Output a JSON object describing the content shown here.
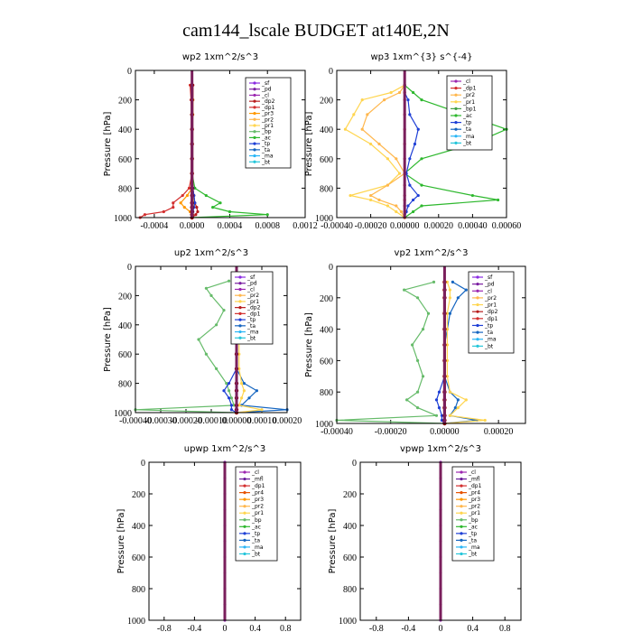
{
  "title": "cam144_lscale  BUDGET at140E,2N",
  "colors": {
    "sf": "#8a2be2",
    "pd": "#7b1fa2",
    "cl": "#9c27b0",
    "mfl": "#6a1b9a",
    "dp1": "#d32f2f",
    "dp2": "#b71c1c",
    "pr1": "#ffd54f",
    "pr2": "#ffb74d",
    "pr3": "#ff9800",
    "pr4": "#e65100",
    "bp": "#66bb6a",
    "bp1": "#43a047",
    "ac": "#2eb82e",
    "tp": "#1e3fd6",
    "ta": "#1565c0",
    "ma": "#29b6f6",
    "bt": "#26c6da",
    "sum": "#8b0000"
  },
  "chart_data": [
    {
      "id": "wp2",
      "type": "line",
      "title": "wp2   1xm^2/s^3",
      "ylabel": "Pressure [hPa]",
      "xlim": [
        -0.0006,
        0.0012
      ],
      "ylim": [
        1000,
        0
      ],
      "xticks": [
        -0.0004,
        0.0,
        0.0004,
        0.0008,
        0.0012
      ],
      "xtick_labels": [
        "-0.0004",
        "0.0000",
        "0.0004",
        "0.0008",
        "0.0012"
      ],
      "yticks": [
        0,
        200,
        400,
        600,
        800,
        1000
      ],
      "legend": [
        "_sf",
        "_pd",
        "_cl",
        "_dp2",
        "_dp1",
        "_pr3",
        "_pr2",
        "_pr1",
        "_bp",
        "_ac",
        "_tp",
        "_ta",
        "_ma",
        "_bt"
      ],
      "legend_keys": [
        "sf",
        "pd",
        "cl",
        "dp2",
        "dp1",
        "pr3",
        "pr2",
        "pr1",
        "bp",
        "ac",
        "tp",
        "ta",
        "ma",
        "bt"
      ],
      "legend_pos": "top-right",
      "pressure": [
        100,
        200,
        300,
        400,
        500,
        600,
        700,
        800,
        850,
        900,
        930,
        960,
        980,
        1000
      ],
      "series": [
        {
          "key": "ac",
          "values": [
            0,
            0,
            0,
            0,
            0,
            0,
            0,
            3e-05,
            0.00015,
            0.0003,
            0.00022,
            0.0004,
            0.0008,
            0
          ]
        },
        {
          "key": "dp1",
          "values": [
            -2e-05,
            -1e-05,
            0,
            0,
            0,
            0,
            0,
            -3e-05,
            -0.0001,
            -0.0002,
            -0.0002,
            -0.0003,
            -0.0005,
            -0.00055
          ]
        },
        {
          "key": "pr3",
          "values": [
            0,
            0,
            0,
            0,
            0,
            0,
            0,
            0,
            -5e-05,
            -0.00012,
            -8e-05,
            -2e-05,
            0,
            0
          ]
        },
        {
          "key": "dp2",
          "values": [
            1e-05,
            1e-05,
            0,
            0,
            0,
            0,
            0,
            1e-05,
            2e-05,
            3e-05,
            5e-05,
            6e-05,
            4e-05,
            0
          ]
        },
        {
          "key": "pr1",
          "values": [
            0,
            1e-05,
            1e-05,
            0,
            0,
            0,
            0,
            0,
            1e-05,
            2e-05,
            1e-05,
            0,
            0,
            0
          ]
        },
        {
          "key": "tp",
          "values": [
            0,
            0,
            0,
            0,
            0,
            0,
            0,
            1e-05,
            2e-05,
            3e-05,
            2e-05,
            1e-05,
            0,
            0
          ]
        },
        {
          "key": "sum",
          "values": [
            0,
            0,
            0,
            0,
            0,
            0,
            0,
            0,
            0,
            0,
            0,
            0,
            0,
            0
          ]
        }
      ]
    },
    {
      "id": "wp3",
      "type": "line",
      "title": "wp3   1xm^{3} s^{-4}",
      "ylabel": "Pressure [hPa]",
      "xlim": [
        -0.0004,
        0.0006
      ],
      "ylim": [
        1000,
        0
      ],
      "xticks": [
        -0.0004,
        -0.0002,
        0.0,
        0.0002,
        0.0004,
        0.0006
      ],
      "xtick_labels": [
        "-0.00040",
        "-0.00020",
        "0.00000",
        "0.00020",
        "0.00040",
        "0.00060"
      ],
      "yticks": [
        0,
        200,
        400,
        600,
        800,
        1000
      ],
      "legend": [
        "_cl",
        "_dp1",
        "_pr2",
        "_pr1",
        "_bp1",
        "_ac",
        "_tp",
        "_ta",
        "_ma",
        "_bt"
      ],
      "legend_keys": [
        "cl",
        "dp1",
        "pr2",
        "pr1",
        "bp1",
        "ac",
        "tp",
        "ta",
        "ma",
        "bt"
      ],
      "legend_pos": "top-right",
      "pressure": [
        100,
        150,
        200,
        300,
        400,
        500,
        600,
        700,
        780,
        850,
        880,
        920,
        960,
        1000
      ],
      "series": [
        {
          "key": "ac",
          "values": [
            0,
            5e-05,
            0.0001,
            0.00035,
            0.0006,
            0.0004,
            0.0001,
            0,
            0.0001,
            0.0004,
            0.00055,
            0.0001,
            5e-05,
            0
          ]
        },
        {
          "key": "pr1",
          "values": [
            0,
            -8e-05,
            -0.00025,
            -0.0003,
            -0.00035,
            -0.0002,
            -0.0001,
            -3e-05,
            -0.0001,
            -0.00032,
            -0.0002,
            -0.0001,
            -5e-05,
            0
          ]
        },
        {
          "key": "pr2",
          "values": [
            0,
            -3e-05,
            -0.00012,
            -0.00022,
            -0.00025,
            -0.00015,
            -5e-05,
            0,
            -0.0001,
            -0.0002,
            -0.00015,
            -5e-05,
            -2e-05,
            0
          ]
        },
        {
          "key": "tp",
          "values": [
            0,
            0,
            2e-05,
            3e-05,
            8e-05,
            6e-05,
            3e-05,
            1e-05,
            3e-05,
            8e-05,
            5e-05,
            2e-05,
            1e-05,
            0
          ]
        },
        {
          "key": "dp1",
          "values": [
            0,
            0,
            0,
            0,
            0,
            0,
            0,
            0,
            0,
            0,
            0,
            0,
            0,
            0
          ]
        }
      ]
    },
    {
      "id": "up2",
      "type": "line",
      "title": "up2   1xm^2/s^3",
      "ylabel": "Pressure [hPa]",
      "xlim": [
        -0.0004,
        0.0002
      ],
      "ylim": [
        1000,
        0
      ],
      "xticks": [
        -0.0004,
        -0.0003,
        -0.0002,
        -0.0001,
        0.0,
        0.0001,
        0.0002
      ],
      "xtick_labels": [
        "-0.00040",
        "-0.00030",
        "-0.00020",
        "-0.00010",
        "0.00000",
        "0.00010",
        "0.00020"
      ],
      "yticks": [
        0,
        200,
        400,
        600,
        800,
        1000
      ],
      "legend": [
        "_sf",
        "_pd",
        "_cl",
        "_pr2",
        "_pr1",
        "_dp2",
        "_dp1",
        "_tp",
        "_ta",
        "_ma",
        "_bt"
      ],
      "legend_keys": [
        "sf",
        "pd",
        "cl",
        "pr2",
        "pr1",
        "dp2",
        "dp1",
        "tp",
        "ta",
        "ma",
        "bt"
      ],
      "legend_pos": "top-right",
      "pressure": [
        100,
        150,
        200,
        300,
        400,
        500,
        600,
        700,
        800,
        850,
        900,
        950,
        980,
        1000
      ],
      "series": [
        {
          "key": "bp",
          "values": [
            -3e-05,
            -0.00012,
            -0.0001,
            -5e-05,
            -8e-05,
            -0.00015,
            -0.00012,
            -8e-05,
            -4e-05,
            -3e-05,
            -2e-05,
            -1e-05,
            -0.0004,
            0
          ]
        },
        {
          "key": "ta",
          "values": [
            4e-05,
            0.00012,
            8e-05,
            2e-05,
            1e-05,
            0,
            0,
            0,
            3e-05,
            8e-05,
            5e-05,
            2e-05,
            0.0002,
            0
          ]
        },
        {
          "key": "pr1",
          "values": [
            1e-05,
            3e-05,
            2e-05,
            1e-05,
            1e-05,
            1e-05,
            1e-05,
            1e-05,
            2e-05,
            3e-05,
            2e-05,
            1e-05,
            0.0001,
            0
          ]
        },
        {
          "key": "tp",
          "values": [
            0,
            0,
            0,
            0,
            0,
            0,
            0,
            0,
            -3e-05,
            -5e-05,
            -3e-05,
            -2e-05,
            -2e-05,
            0
          ]
        },
        {
          "key": "sum",
          "values": [
            0,
            0,
            0,
            0,
            0,
            0,
            0,
            0,
            0,
            0,
            0,
            0,
            0,
            0
          ]
        }
      ]
    },
    {
      "id": "vp2",
      "type": "line",
      "title": "vp2   1xm^2/s^3",
      "ylabel": "Pressure [hPa]",
      "xlim": [
        -0.0004,
        0.0003
      ],
      "ylim": [
        1000,
        0
      ],
      "xticks": [
        -0.0004,
        -0.0002,
        0.0,
        0.0002
      ],
      "xtick_labels": [
        "-0.00040",
        "-0.00020",
        "0.00000",
        "0.00020"
      ],
      "yticks": [
        0,
        200,
        400,
        600,
        800,
        1000
      ],
      "legend": [
        "_sf",
        "_pd",
        "_cl",
        "_pr2",
        "_pr1",
        "_dp2",
        "_dp1",
        "_tp",
        "_ta",
        "_ma",
        "_bt"
      ],
      "legend_keys": [
        "sf",
        "pd",
        "cl",
        "pr2",
        "pr1",
        "dp2",
        "dp1",
        "tp",
        "ta",
        "ma",
        "bt"
      ],
      "legend_pos": "top-right",
      "pressure": [
        100,
        150,
        200,
        300,
        400,
        500,
        600,
        700,
        800,
        850,
        900,
        950,
        980,
        1000
      ],
      "series": [
        {
          "key": "bp",
          "values": [
            -4e-05,
            -0.00015,
            -0.0001,
            -6e-05,
            -8e-05,
            -0.00012,
            -0.0001,
            -8e-05,
            -0.0001,
            -0.00014,
            -0.0001,
            -3e-05,
            -0.0004,
            0
          ]
        },
        {
          "key": "ta",
          "values": [
            3e-05,
            8e-05,
            5e-05,
            2e-05,
            1e-05,
            0,
            0,
            0,
            2e-05,
            5e-05,
            4e-05,
            2e-05,
            0.00012,
            0
          ]
        },
        {
          "key": "pr1",
          "values": [
            1e-05,
            2e-05,
            2e-05,
            1e-05,
            1e-05,
            1e-05,
            1e-05,
            1e-05,
            2e-05,
            8e-05,
            5e-05,
            2e-05,
            0.00015,
            0
          ]
        },
        {
          "key": "tp",
          "values": [
            0,
            0,
            0,
            0,
            0,
            0,
            0,
            0,
            -2e-05,
            -3e-05,
            -2e-05,
            -1e-05,
            -1e-05,
            0
          ]
        },
        {
          "key": "sum",
          "values": [
            0,
            0,
            0,
            0,
            0,
            0,
            0,
            0,
            0,
            0,
            0,
            0,
            0,
            0
          ]
        }
      ]
    },
    {
      "id": "upwp",
      "type": "line",
      "title": "upwp   1xm^2/s^3",
      "ylabel": "Pressure [hPa]",
      "xlim": [
        -1.0,
        1.0
      ],
      "ylim": [
        1000,
        0
      ],
      "xticks": [
        -0.8,
        -0.4,
        0.0,
        0.4,
        0.8
      ],
      "xtick_labels": [
        "-0.8",
        "-0.4",
        "0",
        "0.4",
        "0.8"
      ],
      "yticks": [
        0,
        200,
        400,
        600,
        800,
        1000
      ],
      "legend": [
        "_cl",
        "_mfl",
        "_dp1",
        "_pr4",
        "_pr3",
        "_pr2",
        "_pr1",
        "_bp",
        "_ac",
        "_tp",
        "_ta",
        "_ma",
        "_bt"
      ],
      "legend_keys": [
        "cl",
        "mfl",
        "dp1",
        "pr4",
        "pr3",
        "pr2",
        "pr1",
        "bp",
        "ac",
        "tp",
        "ta",
        "ma",
        "bt"
      ],
      "legend_pos": "top-right",
      "pressure": [
        0,
        100,
        200,
        300,
        400,
        500,
        600,
        700,
        800,
        900,
        1000
      ],
      "series": [
        {
          "key": "cl",
          "values": [
            0,
            0,
            0,
            0,
            0,
            0,
            0,
            0,
            0,
            0,
            0
          ]
        }
      ]
    },
    {
      "id": "vpwp",
      "type": "line",
      "title": "vpwp   1xm^2/s^3",
      "ylabel": "Pressure [hPa]",
      "xlim": [
        -1.0,
        1.0
      ],
      "ylim": [
        1000,
        0
      ],
      "xticks": [
        -0.8,
        -0.4,
        0.0,
        0.4,
        0.8
      ],
      "xtick_labels": [
        "-0.8",
        "-0.4",
        "0",
        "0.4",
        "0.8"
      ],
      "yticks": [
        0,
        200,
        400,
        600,
        800,
        1000
      ],
      "legend": [
        "_cl",
        "_mfl",
        "_dp1",
        "_pr4",
        "_pr3",
        "_pr2",
        "_pr1",
        "_bp",
        "_ac",
        "_tp",
        "_ta",
        "_ma",
        "_bt"
      ],
      "legend_keys": [
        "cl",
        "mfl",
        "dp1",
        "pr4",
        "pr3",
        "pr2",
        "pr1",
        "bp",
        "ac",
        "tp",
        "ta",
        "ma",
        "bt"
      ],
      "legend_pos": "top-right",
      "pressure": [
        0,
        100,
        200,
        300,
        400,
        500,
        600,
        700,
        800,
        900,
        1000
      ],
      "series": [
        {
          "key": "cl",
          "values": [
            0,
            0,
            0,
            0,
            0,
            0,
            0,
            0,
            0,
            0,
            0
          ]
        }
      ]
    }
  ]
}
